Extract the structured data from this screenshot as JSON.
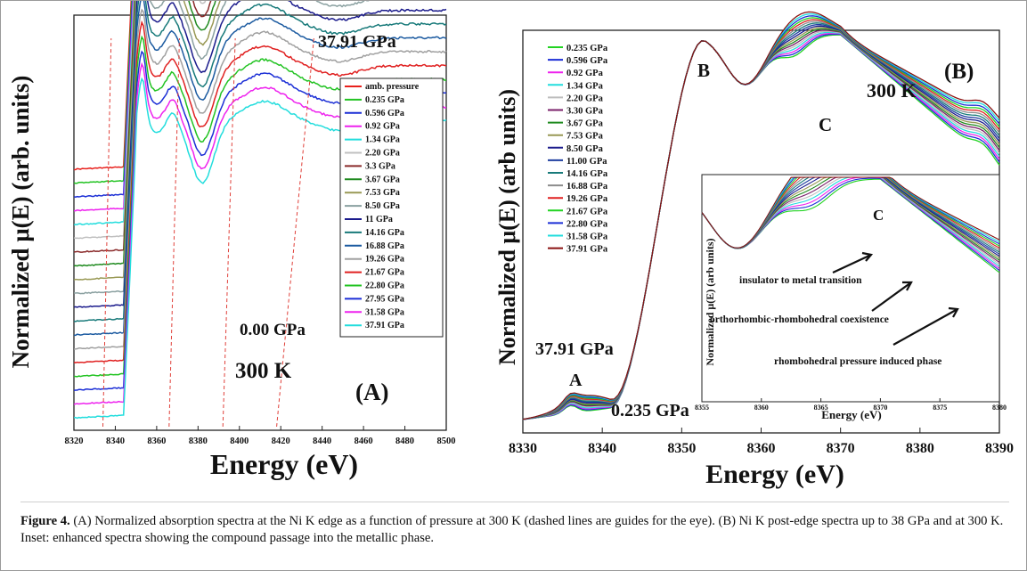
{
  "figure": {
    "caption_label": "Figure 4.",
    "caption_text": " (A) Normalized absorption spectra at the Ni K edge as a function of pressure at 300 K (dashed lines are guides for the eye). (B) Ni K post-edge spectra up to 38 GPa and at 300 K. Inset: enhanced spectra showing the compound passage into the metallic phase."
  },
  "chart_data": [
    {
      "panel": "A",
      "type": "line",
      "panel_label": "(A)",
      "temperature_label": "300 K",
      "top_label": "37.91 GPa",
      "bottom_label": "0.00 GPa",
      "xlabel": "Energy (eV)",
      "ylabel": "Normalized μ(E) (arb. units)",
      "xlim": [
        8320,
        8500
      ],
      "x_ticks": [
        "8320",
        "8340",
        "8360",
        "8380",
        "8400",
        "8420",
        "8440",
        "8460",
        "8480",
        "8500"
      ],
      "stacked_offset": true,
      "legend_position": "right",
      "series": [
        {
          "name": "amb. pressure",
          "color": "#e8201c"
        },
        {
          "name": "0.235 GPa",
          "color": "#22c322"
        },
        {
          "name": "0.596 GPa",
          "color": "#1c2fd6"
        },
        {
          "name": "0.92 GPa",
          "color": "#ee22ee"
        },
        {
          "name": "1.34 GPa",
          "color": "#22dddd"
        },
        {
          "name": "2.20 GPa",
          "color": "#c0c0c0"
        },
        {
          "name": "3.3 GPa",
          "color": "#8a2a2a"
        },
        {
          "name": "3.67 GPa",
          "color": "#1f8a1f"
        },
        {
          "name": "7.53 GPa",
          "color": "#999955"
        },
        {
          "name": "8.50 GPa",
          "color": "#8aa0a0"
        },
        {
          "name": "11 GPa",
          "color": "#1b1b8c"
        },
        {
          "name": "14.16 GPa",
          "color": "#187a7a"
        },
        {
          "name": "16.88 GPa",
          "color": "#1b5aa0"
        },
        {
          "name": "19.26 GPa",
          "color": "#a0a0a0"
        },
        {
          "name": "21.67  GPa",
          "color": "#e02020"
        },
        {
          "name": "22.80 GPa",
          "color": "#22c322"
        },
        {
          "name": "27.95 GPa",
          "color": "#1c2fd6"
        },
        {
          "name": "31.58 GPa",
          "color": "#ee22ee"
        },
        {
          "name": "37.91 GPa",
          "color": "#22dddd"
        }
      ],
      "guide_lines_x": [
        [
          8334,
          8338
        ],
        [
          8366,
          8371
        ],
        [
          8392,
          8398
        ],
        [
          8418,
          8436
        ]
      ]
    },
    {
      "panel": "B",
      "type": "line",
      "panel_label": "(B)",
      "temperature_label": "300 K",
      "xlabel": "Energy (eV)",
      "ylabel": "Normalized μ(E) (arb units)",
      "xlim": [
        8330,
        8390
      ],
      "x_ticks": [
        "8330",
        "8340",
        "8350",
        "8360",
        "8370",
        "8380",
        "8390"
      ],
      "features": {
        "A": "A",
        "B": "B",
        "C": "C"
      },
      "pressure_labels": {
        "high": "37.91 GPa",
        "low": "0.235 GPa"
      },
      "legend_position": "top-left",
      "series": [
        {
          "name": "0.235 GPa",
          "color": "#22d322"
        },
        {
          "name": "0.596 GPa",
          "color": "#1c2fd6"
        },
        {
          "name": "0.92  GPa",
          "color": "#ee22ee"
        },
        {
          "name": "1.34  GPa",
          "color": "#22dddd"
        },
        {
          "name": "2.20  GPa",
          "color": "#bdbdbd"
        },
        {
          "name": "3.30  GPa",
          "color": "#7a1f6a"
        },
        {
          "name": "3.67  GPa",
          "color": "#1f8a1f"
        },
        {
          "name": "7.53  GPa",
          "color": "#999955"
        },
        {
          "name": "8.50  GPa",
          "color": "#1b1b8c"
        },
        {
          "name": "11.00 GPa",
          "color": "#1f3fa0"
        },
        {
          "name": "14.16 GPa",
          "color": "#187a7a"
        },
        {
          "name": "16.88 GPa",
          "color": "#8c8c8c"
        },
        {
          "name": "19.26 GPa",
          "color": "#e02020"
        },
        {
          "name": "21.67 GPa",
          "color": "#22d322"
        },
        {
          "name": "22.80 GPa",
          "color": "#1c2fd6"
        },
        {
          "name": "31.58 GPa",
          "color": "#22dddd"
        },
        {
          "name": "37.91 GPa",
          "color": "#8a1010"
        }
      ],
      "inset": {
        "xlabel": "Energy (eV)",
        "ylabel": "Normalized μ(E) (arb units)",
        "xlim": [
          8355,
          8380
        ],
        "x_ticks": [
          "8355",
          "8360",
          "8365",
          "8370",
          "8375",
          "8380"
        ],
        "feature": "C",
        "annotations": [
          "insulator to metal transition",
          "orthorhombic-rhombohedral coexistence",
          "rhombohedral pressure induced phase"
        ]
      }
    }
  ]
}
